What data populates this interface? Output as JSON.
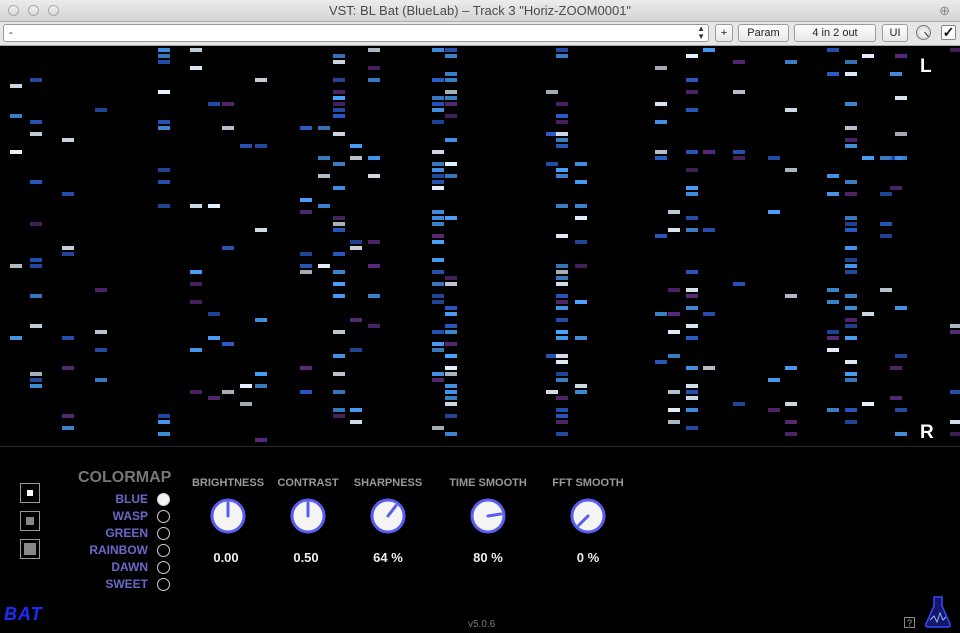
{
  "window": {
    "title": "VST: BL Bat (BlueLab) – Track 3 \"Horiz-ZOOM0001\""
  },
  "toolbar": {
    "preset_value": "-",
    "add_label": "+",
    "param_label": "Param",
    "io_label": "4 in 2 out",
    "ui_label": "UI",
    "bypass_checked": "✓"
  },
  "spectrogram": {
    "left_label": "L",
    "right_label": "R"
  },
  "colormap": {
    "title": "COLORMAP",
    "options": [
      {
        "label": "BLUE",
        "selected": true
      },
      {
        "label": "WASP",
        "selected": false
      },
      {
        "label": "GREEN",
        "selected": false
      },
      {
        "label": "RAINBOW",
        "selected": false
      },
      {
        "label": "DAWN",
        "selected": false
      },
      {
        "label": "SWEET",
        "selected": false
      }
    ]
  },
  "controls": [
    {
      "title": "BRIGHTNESS",
      "value": "0.00",
      "level": 0.5
    },
    {
      "title": "CONTRAST",
      "value": "0.50",
      "level": 0.5
    },
    {
      "title": "SHARPNESS",
      "value": "64 %",
      "level": 0.64
    },
    {
      "title": "TIME SMOOTH",
      "value": "80 %",
      "level": 0.8
    },
    {
      "title": "FFT SMOOTH",
      "value": "0 %",
      "level": 0.0
    }
  ],
  "footer": {
    "logo": "BAT",
    "version": "v5.0.6",
    "help": "?"
  },
  "colors": {
    "accent": "#6a68c8",
    "knob_stroke": "#5a5ef0",
    "logo": "#1a2cff"
  }
}
